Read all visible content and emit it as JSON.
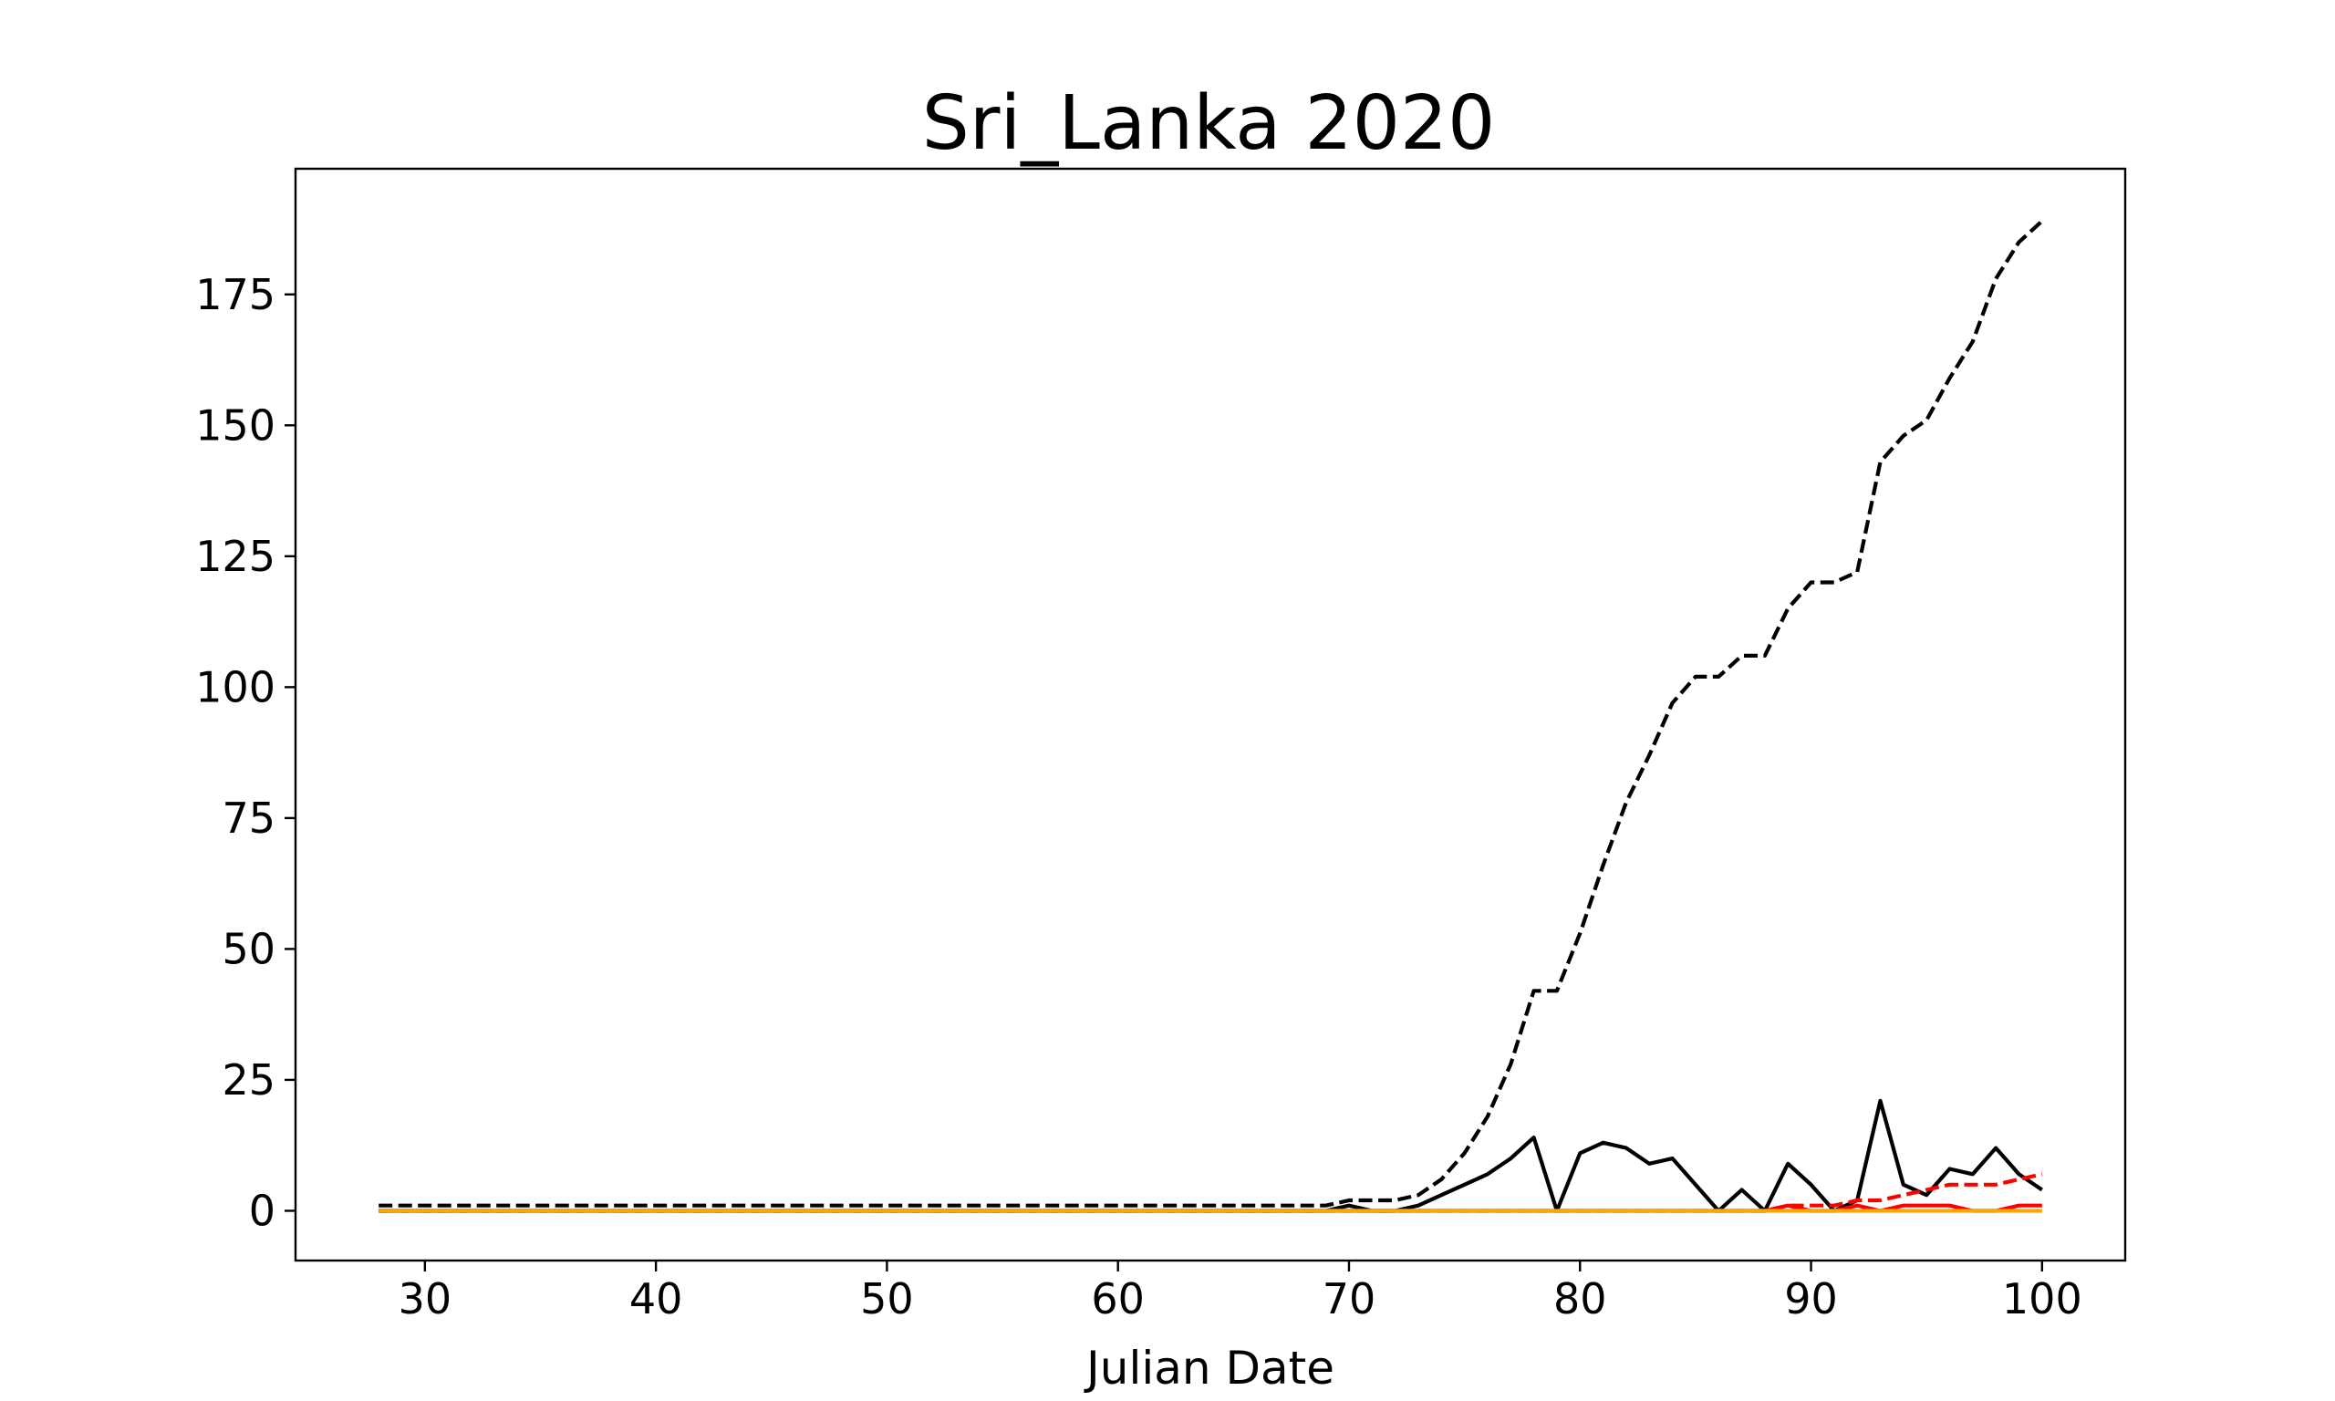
{
  "chart_data": {
    "type": "line",
    "title": "Sri_Lanka 2020",
    "xlabel": "Julian Date",
    "ylabel": "",
    "xlim": [
      24.4,
      103.6
    ],
    "ylim": [
      -9.5,
      199.0
    ],
    "xticks": [
      30,
      40,
      50,
      60,
      70,
      80,
      90,
      100
    ],
    "yticks": [
      0,
      25,
      50,
      75,
      100,
      125,
      150,
      175
    ],
    "grid": false,
    "x": [
      28,
      29,
      30,
      31,
      32,
      33,
      34,
      35,
      36,
      37,
      38,
      39,
      40,
      41,
      42,
      43,
      44,
      45,
      46,
      47,
      48,
      49,
      50,
      51,
      52,
      53,
      54,
      55,
      56,
      57,
      58,
      59,
      60,
      61,
      62,
      63,
      64,
      65,
      66,
      67,
      68,
      69,
      70,
      71,
      72,
      73,
      74,
      75,
      76,
      77,
      78,
      79,
      80,
      81,
      82,
      83,
      84,
      85,
      86,
      87,
      88,
      89,
      90,
      91,
      92,
      93,
      94,
      95,
      96,
      97,
      98,
      99,
      100
    ],
    "series": [
      {
        "color": "#000000",
        "dash": "dashed",
        "values": [
          1,
          1,
          1,
          1,
          1,
          1,
          1,
          1,
          1,
          1,
          1,
          1,
          1,
          1,
          1,
          1,
          1,
          1,
          1,
          1,
          1,
          1,
          1,
          1,
          1,
          1,
          1,
          1,
          1,
          1,
          1,
          1,
          1,
          1,
          1,
          1,
          1,
          1,
          1,
          1,
          1,
          1,
          2,
          2,
          2,
          3,
          6,
          11,
          18,
          28,
          42,
          42,
          53,
          66,
          78,
          87,
          97,
          102,
          102,
          106,
          106,
          115,
          120,
          120,
          122,
          143,
          148,
          151,
          159,
          166,
          178,
          185,
          189
        ]
      },
      {
        "color": "#000000",
        "dash": "solid",
        "values": [
          0,
          0,
          0,
          0,
          0,
          0,
          0,
          0,
          0,
          0,
          0,
          0,
          0,
          0,
          0,
          0,
          0,
          0,
          0,
          0,
          0,
          0,
          0,
          0,
          0,
          0,
          0,
          0,
          0,
          0,
          0,
          0,
          0,
          0,
          0,
          0,
          0,
          0,
          0,
          0,
          0,
          0,
          1,
          0,
          0,
          1,
          3,
          5,
          7,
          10,
          14,
          0,
          11,
          13,
          12,
          9,
          10,
          5,
          0,
          4,
          0,
          9,
          5,
          0,
          2,
          21,
          5,
          3,
          8,
          7,
          12,
          7,
          4
        ]
      },
      {
        "color": "#ff0000",
        "dash": "dashed",
        "values": [
          0,
          0,
          0,
          0,
          0,
          0,
          0,
          0,
          0,
          0,
          0,
          0,
          0,
          0,
          0,
          0,
          0,
          0,
          0,
          0,
          0,
          0,
          0,
          0,
          0,
          0,
          0,
          0,
          0,
          0,
          0,
          0,
          0,
          0,
          0,
          0,
          0,
          0,
          0,
          0,
          0,
          0,
          0,
          0,
          0,
          0,
          0,
          0,
          0,
          0,
          0,
          0,
          0,
          0,
          0,
          0,
          0,
          0,
          0,
          0,
          0,
          1,
          1,
          1,
          2,
          2,
          3,
          4,
          5,
          5,
          5,
          6,
          7
        ]
      },
      {
        "color": "#ff0000",
        "dash": "solid",
        "values": [
          0,
          0,
          0,
          0,
          0,
          0,
          0,
          0,
          0,
          0,
          0,
          0,
          0,
          0,
          0,
          0,
          0,
          0,
          0,
          0,
          0,
          0,
          0,
          0,
          0,
          0,
          0,
          0,
          0,
          0,
          0,
          0,
          0,
          0,
          0,
          0,
          0,
          0,
          0,
          0,
          0,
          0,
          0,
          0,
          0,
          0,
          0,
          0,
          0,
          0,
          0,
          0,
          0,
          0,
          0,
          0,
          0,
          0,
          0,
          0,
          0,
          1,
          0,
          0,
          1,
          0,
          1,
          1,
          1,
          0,
          0,
          1,
          1
        ]
      },
      {
        "color": "#ffa500",
        "dash": "solid",
        "values": [
          0,
          0,
          0,
          0,
          0,
          0,
          0,
          0,
          0,
          0,
          0,
          0,
          0,
          0,
          0,
          0,
          0,
          0,
          0,
          0,
          0,
          0,
          0,
          0,
          0,
          0,
          0,
          0,
          0,
          0,
          0,
          0,
          0,
          0,
          0,
          0,
          0,
          0,
          0,
          0,
          0,
          0,
          0,
          0,
          0,
          0,
          0,
          0,
          0,
          0,
          0,
          0,
          0,
          0,
          0,
          0,
          0,
          0,
          0,
          0,
          0,
          0,
          0,
          0,
          0,
          0,
          0,
          0,
          0,
          0,
          0,
          0,
          0
        ]
      }
    ]
  }
}
